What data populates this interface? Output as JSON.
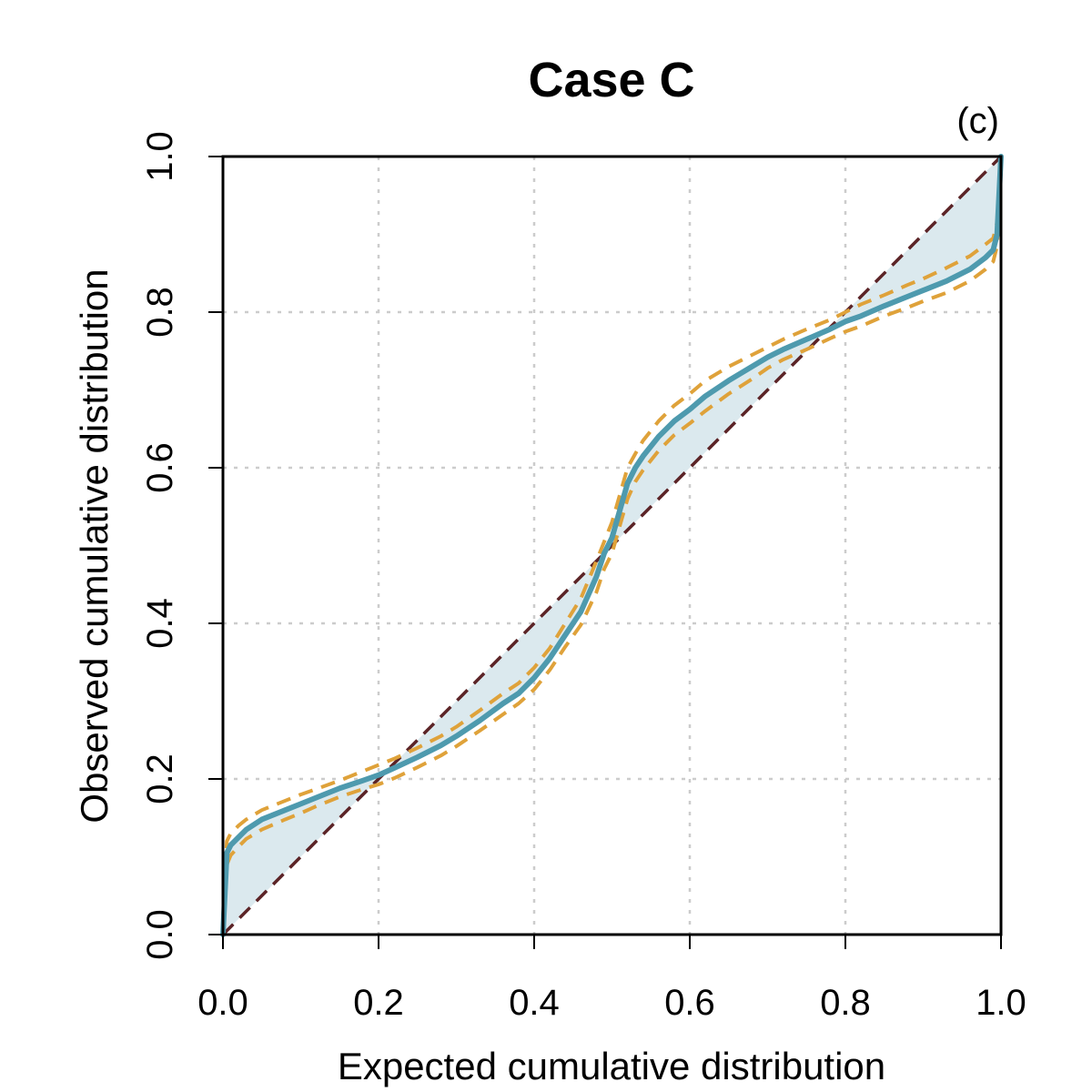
{
  "colors": {
    "observed": "#4e9aae",
    "band": "#deb55c",
    "band_line": "#dfa23a",
    "band_fill": "#dbe9ee",
    "diagonal": "#5b2326",
    "grid": "#cccccc"
  },
  "chart_data": {
    "type": "line",
    "title": "Case C",
    "panel_label": "(c)",
    "xlabel": "Expected cumulative distribution",
    "ylabel": "Observed cumulative distribution",
    "xlim": [
      0,
      1
    ],
    "ylim": [
      0,
      1
    ],
    "xticks": [
      0,
      0.2,
      0.4,
      0.6,
      0.8,
      1
    ],
    "yticks": [
      0,
      0.2,
      0.4,
      0.6,
      0.8,
      1
    ],
    "xtick_labels": [
      "0.0",
      "0.2",
      "0.4",
      "0.6",
      "0.8",
      "1.0"
    ],
    "ytick_labels": [
      "0.0",
      "0.2",
      "0.4",
      "0.6",
      "0.8",
      "1.0"
    ],
    "grid": true,
    "series": [
      {
        "name": "observed",
        "style": "solid",
        "x": [
          0,
          0.005,
          0.01,
          0.02,
          0.03,
          0.05,
          0.08,
          0.1,
          0.12,
          0.15,
          0.18,
          0.2,
          0.22,
          0.25,
          0.28,
          0.3,
          0.33,
          0.36,
          0.38,
          0.4,
          0.42,
          0.44,
          0.46,
          0.48,
          0.49,
          0.5,
          0.51,
          0.52,
          0.53,
          0.54,
          0.56,
          0.58,
          0.6,
          0.62,
          0.65,
          0.68,
          0.7,
          0.72,
          0.75,
          0.78,
          0.8,
          0.82,
          0.85,
          0.88,
          0.9,
          0.93,
          0.96,
          0.98,
          0.99,
          0.995,
          1.0
        ],
        "y": [
          0,
          0.105,
          0.115,
          0.125,
          0.135,
          0.148,
          0.16,
          0.168,
          0.176,
          0.188,
          0.198,
          0.205,
          0.214,
          0.228,
          0.243,
          0.255,
          0.275,
          0.297,
          0.31,
          0.33,
          0.355,
          0.385,
          0.415,
          0.46,
          0.49,
          0.51,
          0.545,
          0.58,
          0.6,
          0.615,
          0.64,
          0.66,
          0.675,
          0.692,
          0.712,
          0.73,
          0.742,
          0.752,
          0.765,
          0.778,
          0.788,
          0.795,
          0.808,
          0.82,
          0.828,
          0.84,
          0.855,
          0.87,
          0.88,
          0.9,
          1.0
        ]
      },
      {
        "name": "upper-band",
        "style": "dashed",
        "x": [
          0,
          0.005,
          0.01,
          0.02,
          0.03,
          0.05,
          0.08,
          0.1,
          0.12,
          0.15,
          0.18,
          0.2,
          0.22,
          0.25,
          0.28,
          0.3,
          0.33,
          0.36,
          0.38,
          0.4,
          0.42,
          0.44,
          0.46,
          0.48,
          0.49,
          0.5,
          0.51,
          0.52,
          0.53,
          0.54,
          0.56,
          0.58,
          0.6,
          0.62,
          0.65,
          0.68,
          0.7,
          0.72,
          0.75,
          0.78,
          0.8,
          0.82,
          0.85,
          0.88,
          0.9,
          0.93,
          0.96,
          0.98,
          0.99,
          0.995,
          1.0
        ],
        "y": [
          0.02,
          0.12,
          0.13,
          0.14,
          0.148,
          0.16,
          0.172,
          0.18,
          0.187,
          0.198,
          0.21,
          0.218,
          0.226,
          0.24,
          0.255,
          0.267,
          0.288,
          0.31,
          0.323,
          0.343,
          0.368,
          0.4,
          0.432,
          0.48,
          0.505,
          0.53,
          0.565,
          0.6,
          0.618,
          0.635,
          0.66,
          0.68,
          0.695,
          0.712,
          0.73,
          0.745,
          0.755,
          0.765,
          0.778,
          0.79,
          0.8,
          0.81,
          0.822,
          0.835,
          0.843,
          0.857,
          0.872,
          0.887,
          0.895,
          0.915,
          1.0
        ]
      },
      {
        "name": "lower-band",
        "style": "dashed",
        "x": [
          0,
          0.005,
          0.01,
          0.02,
          0.03,
          0.05,
          0.08,
          0.1,
          0.12,
          0.15,
          0.18,
          0.2,
          0.22,
          0.25,
          0.28,
          0.3,
          0.33,
          0.36,
          0.38,
          0.4,
          0.42,
          0.44,
          0.46,
          0.48,
          0.49,
          0.5,
          0.51,
          0.52,
          0.53,
          0.54,
          0.56,
          0.58,
          0.6,
          0.62,
          0.65,
          0.68,
          0.7,
          0.72,
          0.75,
          0.78,
          0.8,
          0.82,
          0.85,
          0.88,
          0.9,
          0.93,
          0.96,
          0.98,
          0.99,
          0.995,
          1.0
        ],
        "y": [
          0,
          0.09,
          0.102,
          0.113,
          0.123,
          0.135,
          0.148,
          0.156,
          0.165,
          0.177,
          0.187,
          0.193,
          0.201,
          0.215,
          0.23,
          0.242,
          0.262,
          0.283,
          0.297,
          0.315,
          0.34,
          0.37,
          0.398,
          0.44,
          0.47,
          0.49,
          0.525,
          0.56,
          0.582,
          0.597,
          0.622,
          0.642,
          0.657,
          0.673,
          0.695,
          0.714,
          0.728,
          0.739,
          0.752,
          0.766,
          0.775,
          0.782,
          0.795,
          0.806,
          0.814,
          0.825,
          0.84,
          0.855,
          0.865,
          0.885,
          0.99
        ]
      },
      {
        "name": "reference-diagonal",
        "style": "dashed",
        "x": [
          0,
          1
        ],
        "y": [
          0,
          1
        ]
      }
    ]
  }
}
